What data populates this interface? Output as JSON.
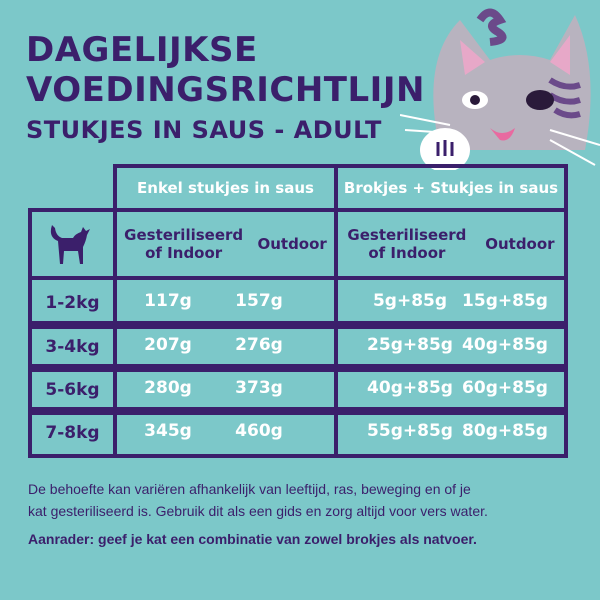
{
  "header": {
    "title_line1": "DAGELIJKSE",
    "title_line2": "VOEDINGSRICHTLIJN",
    "subtitle": "STUKJES IN SAUS - ADULT"
  },
  "table": {
    "groups": [
      "Enkel stukjes in saus",
      "Brokjes + Stukjes in saus"
    ],
    "subheaders": [
      [
        "Gesteriliseerd",
        "of Indoor"
      ],
      "Outdoor",
      [
        "Gesteriliseerd",
        "of Indoor"
      ],
      "Outdoor"
    ],
    "row_icon": "cat-silhouette-icon",
    "rows": [
      {
        "weight": "1-2kg",
        "values": [
          "117g",
          "157g",
          "5g+85g",
          "15g+85g"
        ]
      },
      {
        "weight": "3-4kg",
        "values": [
          "207g",
          "276g",
          "25g+85g",
          "40g+85g"
        ]
      },
      {
        "weight": "5-6kg",
        "values": [
          "280g",
          "373g",
          "40g+85g",
          "60g+85g"
        ]
      },
      {
        "weight": "7-8kg",
        "values": [
          "345g",
          "460g",
          "55g+85g",
          "80g+85g"
        ]
      }
    ]
  },
  "notes": {
    "line1": "De behoefte kan variëren afhankelijk van leeftijd, ras, beweging en of je",
    "line2": "kat gesteriliseerd is. Gebruik dit als een gids en zorg altijd voor vers water.",
    "advice": "Aanrader: geef je kat een combinatie van zowel brokjes als natvoer."
  },
  "colors": {
    "background": "#7cc8c9",
    "primary": "#3b1f6b",
    "text_light": "#ffffff"
  }
}
